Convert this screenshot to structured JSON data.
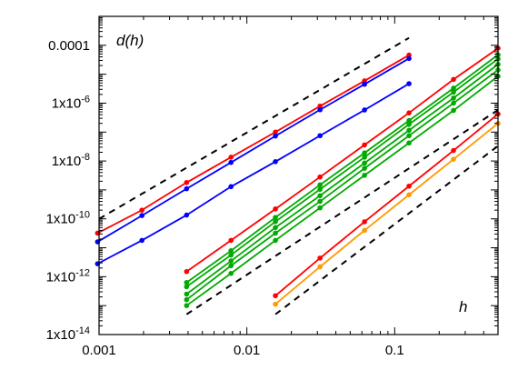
{
  "chart_data": {
    "type": "line",
    "scale": {
      "x": "log",
      "y": "log"
    },
    "xlim": [
      0.001,
      0.5
    ],
    "ylim": [
      1e-14,
      0.001
    ],
    "grid": false,
    "legend": "none",
    "xlabel": "h",
    "ylabel": "d(h)",
    "x_ticks": [
      {
        "value": 0.001,
        "label": "0.001"
      },
      {
        "value": 0.01,
        "label": "0.01"
      },
      {
        "value": 0.1,
        "label": "0.1"
      }
    ],
    "y_ticks": [
      {
        "value": 1e-14,
        "label": "1x10-14",
        "base": "1x10",
        "exp": "-14"
      },
      {
        "value": 1e-12,
        "label": "1x10-12",
        "base": "1x10",
        "exp": "-12"
      },
      {
        "value": 1e-10,
        "label": "1x10-10",
        "base": "1x10",
        "exp": "-10"
      },
      {
        "value": 1e-08,
        "label": "1x10-8",
        "base": "1x10",
        "exp": "-8"
      },
      {
        "value": 1e-06,
        "label": "1x10-6",
        "base": "1x10",
        "exp": "-6"
      },
      {
        "value": 0.0001,
        "label": "0.0001",
        "base": "0.0001",
        "exp": ""
      }
    ],
    "series": [
      {
        "color": "#ff0000",
        "style": "line+points",
        "x": [
          0.000977,
          0.00195,
          0.00391,
          0.00781,
          0.0156,
          0.03125,
          0.0625,
          0.125
        ],
        "y": [
          3.2e-11,
          2e-10,
          1.8e-09,
          1.35e-08,
          1e-07,
          7.9e-07,
          5.9e-06,
          4.6e-05
        ]
      },
      {
        "color": "#0000ff",
        "style": "line+points",
        "x": [
          0.000977,
          0.00195,
          0.00391,
          0.00781,
          0.0156,
          0.03125,
          0.0625,
          0.125
        ],
        "y": [
          1.6e-11,
          1.3e-10,
          1.1e-09,
          8.9e-09,
          7.3e-08,
          5.9e-07,
          4.5e-06,
          3.5e-05
        ]
      },
      {
        "color": "#0000ff",
        "style": "line+points",
        "x": [
          0.000977,
          0.00195,
          0.00391,
          0.00781,
          0.0156,
          0.03125,
          0.0625,
          0.125
        ],
        "y": [
          2.8e-12,
          1.8e-11,
          1.35e-10,
          1.3e-09,
          9.5e-09,
          7.5e-08,
          5.8e-07,
          4.7e-06
        ]
      },
      {
        "color": "#ff0000",
        "style": "line+points",
        "x": [
          0.00391,
          0.00781,
          0.0156,
          0.03125,
          0.0625,
          0.125,
          0.25,
          0.5
        ],
        "y": [
          1.5e-12,
          1.8e-11,
          2.2e-10,
          2.8e-09,
          3.6e-08,
          4.6e-07,
          6.6e-06,
          7.9e-05
        ]
      },
      {
        "color": "#00aa00",
        "style": "line+points",
        "x": [
          0.00391,
          0.00781,
          0.0156,
          0.03125,
          0.0625,
          0.125,
          0.25,
          0.5
        ],
        "y": [
          6.3e-13,
          7.9e-12,
          1.12e-10,
          1.5e-09,
          1.9e-08,
          2.5e-07,
          3.3e-06,
          4.7e-05
        ]
      },
      {
        "color": "#00aa00",
        "style": "line+points",
        "x": [
          0.00391,
          0.00781,
          0.0156,
          0.03125,
          0.0625,
          0.125,
          0.25,
          0.5
        ],
        "y": [
          4.5e-13,
          5.6e-12,
          8e-11,
          1.05e-09,
          1.35e-08,
          1.85e-07,
          2.4e-06,
          3.4e-05
        ]
      },
      {
        "color": "#00aa00",
        "style": "line+points",
        "x": [
          0.00391,
          0.00781,
          0.0156,
          0.03125,
          0.0625,
          0.125,
          0.25,
          0.5
        ],
        "y": [
          2.5e-13,
          3.5e-12,
          5e-11,
          6.3e-10,
          8.5e-09,
          1.15e-07,
          1.5e-06,
          2.2e-05
        ]
      },
      {
        "color": "#00aa00",
        "style": "line+points",
        "x": [
          0.00391,
          0.00781,
          0.0156,
          0.03125,
          0.0625,
          0.125,
          0.25,
          0.5
        ],
        "y": [
          1.6e-13,
          2.4e-12,
          3.2e-11,
          4e-10,
          5.6e-09,
          7.5e-08,
          1e-06,
          1.4e-05
        ]
      },
      {
        "color": "#00aa00",
        "style": "line+points",
        "x": [
          0.00391,
          0.00781,
          0.0156,
          0.03125,
          0.0625,
          0.125,
          0.25,
          0.5
        ],
        "y": [
          1e-13,
          1.3e-12,
          1.8e-11,
          2.4e-10,
          3.2e-09,
          4.2e-08,
          5.6e-07,
          8.5e-06
        ]
      },
      {
        "color": "#ff0000",
        "style": "line+points",
        "x": [
          0.0156,
          0.03125,
          0.0625,
          0.125,
          0.25,
          0.5
        ],
        "y": [
          2.2e-13,
          4.4e-12,
          7.9e-11,
          1.35e-09,
          2.3e-08,
          4.2e-07
        ]
      },
      {
        "color": "#ff9900",
        "style": "line+points",
        "x": [
          0.0156,
          0.03125,
          0.0625,
          0.125,
          0.25,
          0.5
        ],
        "y": [
          1.12e-13,
          2.2e-12,
          4e-11,
          6.8e-10,
          1.15e-08,
          2e-07
        ]
      }
    ],
    "reference_lines": [
      {
        "color": "#000000",
        "style": "dashed",
        "x": [
          0.001,
          0.125
        ],
        "y": [
          1e-10,
          0.00018
        ]
      },
      {
        "color": "#000000",
        "style": "dashed",
        "x": [
          0.00391,
          0.5
        ],
        "y": [
          5e-14,
          5.8e-07
        ]
      },
      {
        "color": "#000000",
        "style": "dashed",
        "x": [
          0.0156,
          0.5
        ],
        "y": [
          5e-14,
          3.3e-08
        ]
      }
    ]
  }
}
